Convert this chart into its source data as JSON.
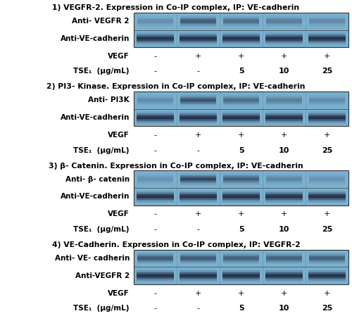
{
  "fig_width": 5.0,
  "fig_height": 4.49,
  "dpi": 100,
  "bg_color": "#ffffff",
  "panels": [
    {
      "title": "1) VEGFR-2. Expression in Co-IP complex, IP: VE-cadherin",
      "label1": "Anti- VEGFR 2",
      "label2": "Anti-VE-cadherin",
      "band1_pattern": [
        0.25,
        0.65,
        0.5,
        0.38,
        0.28
      ],
      "band2_pattern": [
        0.92,
        0.92,
        0.92,
        0.92,
        0.92
      ]
    },
    {
      "title": "2) PI3- Kinase. Expression in Co-IP complex, IP: VE-cadherin",
      "label1": "Anti- PI3K",
      "label2": "Anti-VE-cadherin",
      "band1_pattern": [
        0.28,
        0.72,
        0.52,
        0.38,
        0.28
      ],
      "band2_pattern": [
        0.92,
        0.92,
        0.92,
        0.92,
        0.92
      ]
    },
    {
      "title": "3) β- Catenin. Expression in Co-IP complex, IP: VE-cadherin",
      "label1": "Anti- β- catenin",
      "label2": "Anti-VE-cadherin",
      "band1_pattern": [
        0.22,
        0.82,
        0.62,
        0.32,
        0.22
      ],
      "band2_pattern": [
        0.92,
        0.92,
        0.92,
        0.92,
        0.92
      ]
    },
    {
      "title": "4) VE-Cadherin. Expression in Co-IP complex, IP: VEGFR-2",
      "label1": "Anti- VE- cadherin",
      "label2": "Anti-VEGFR 2",
      "band1_pattern": [
        0.68,
        0.68,
        0.62,
        0.62,
        0.62
      ],
      "band2_pattern": [
        0.92,
        0.92,
        0.92,
        0.92,
        0.92
      ]
    }
  ],
  "vegf_row": [
    "-",
    "+",
    "+",
    "+",
    "+"
  ],
  "tse_row": [
    "-",
    "-",
    "5",
    "10",
    "25"
  ],
  "blot_bg_color_r": 0.48,
  "blot_bg_color_g": 0.69,
  "blot_bg_color_b": 0.81,
  "band_dark_r": 0.08,
  "band_dark_g": 0.1,
  "band_dark_b": 0.2,
  "label_fontsize": 7.5,
  "title_fontsize": 7.8,
  "row_label_fontsize": 7.5,
  "value_fontsize": 8.0
}
